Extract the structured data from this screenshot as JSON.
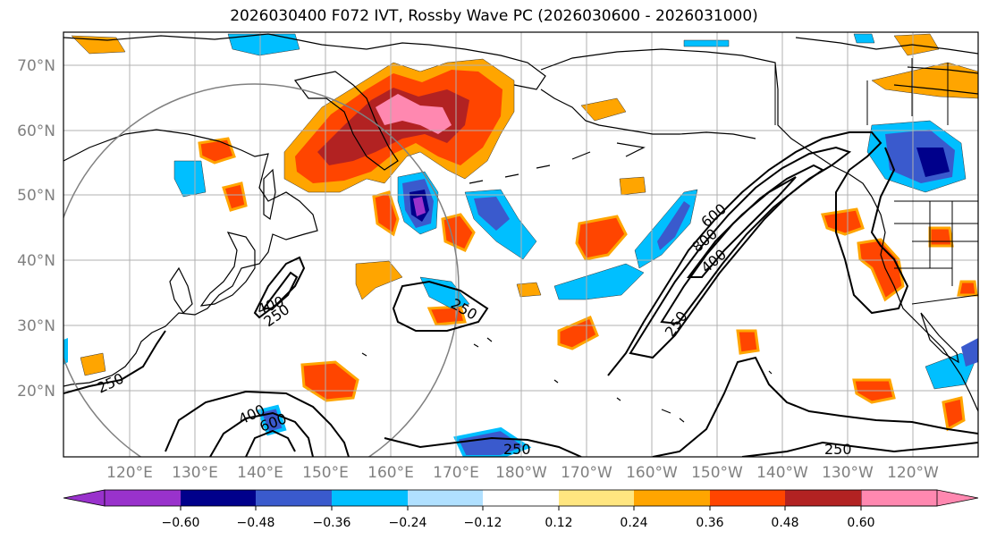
{
  "title": "2026030400 F072 IVT, Rossby Wave PC (2026030600 - 2026031000)",
  "map": {
    "lat_labels": [
      "70°N",
      "60°N",
      "50°N",
      "40°N",
      "30°N",
      "20°N"
    ],
    "lon_labels": [
      "120°E",
      "130°E",
      "140°E",
      "150°E",
      "160°E",
      "170°E",
      "180°W",
      "170°W",
      "160°W",
      "150°W",
      "140°W",
      "130°W",
      "120°W"
    ],
    "contour_labels": [
      {
        "text": "250",
        "name": "contour-label-250-westpacific"
      },
      {
        "text": "400",
        "name": "contour-label-400-japan"
      },
      {
        "text": "250",
        "name": "contour-label-250-japan"
      },
      {
        "text": "250",
        "name": "contour-label-250-central"
      },
      {
        "text": "400",
        "name": "contour-label-400-south"
      },
      {
        "text": "600",
        "name": "contour-label-600-south"
      },
      {
        "text": "250",
        "name": "contour-label-250-south"
      },
      {
        "text": "600",
        "name": "contour-label-600-jet"
      },
      {
        "text": "800",
        "name": "contour-label-800-jet"
      },
      {
        "text": "400",
        "name": "contour-label-400-jet"
      },
      {
        "text": "250",
        "name": "contour-label-250-jet"
      },
      {
        "text": "250",
        "name": "contour-label-250-east"
      }
    ]
  },
  "colorbar": {
    "ticks": [
      "−0.60",
      "−0.48",
      "−0.36",
      "−0.24",
      "−0.12",
      "0.12",
      "0.24",
      "0.36",
      "0.48",
      "0.60"
    ],
    "colors": [
      "#9932cc",
      "#00008b",
      "#3a5acd",
      "#00bfff",
      "#b0e0ff",
      "#ffffff",
      "#ffe680",
      "#ffa500",
      "#ff4500",
      "#b22222",
      "#ff88b0"
    ]
  }
}
